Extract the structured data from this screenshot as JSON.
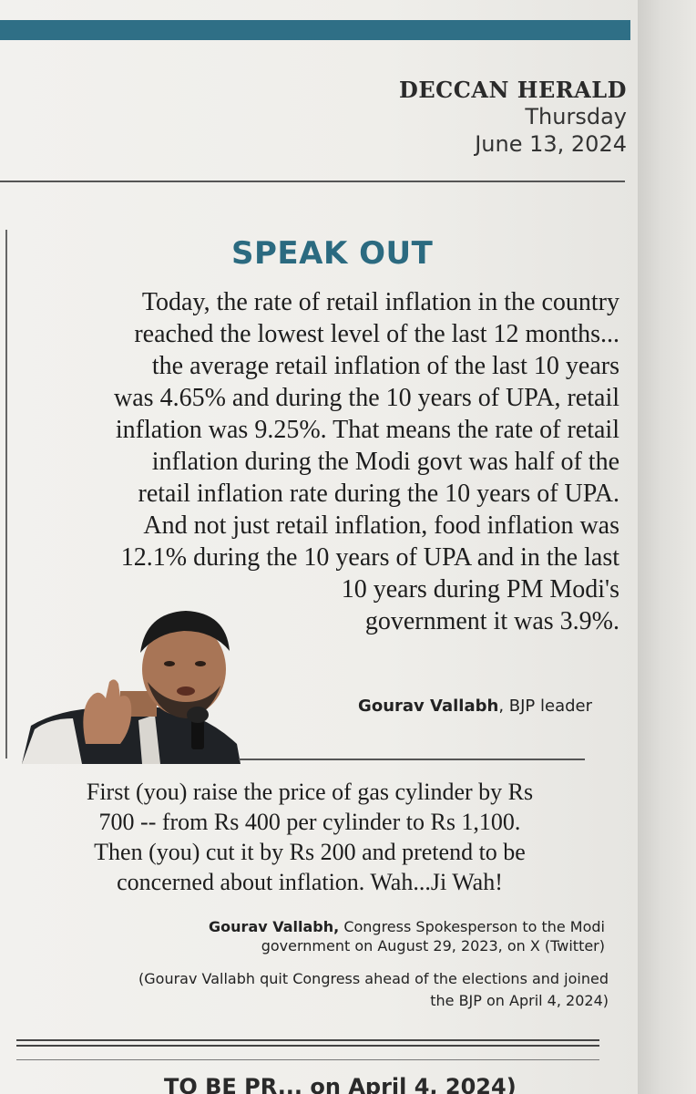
{
  "masthead": {
    "name": "DECCAN HERALD",
    "day": "Thursday",
    "date": "June 13, 2024"
  },
  "section": {
    "title": "SPEAK OUT"
  },
  "quote1": {
    "lines": [
      "Today, the rate of retail inflation in the country",
      "reached the lowest level of the last 12 months...",
      "the average retail inflation of the last 10 years",
      "was 4.65% and during the 10 years of UPA, retail",
      "inflation was 9.25%. That means the rate of retail",
      "inflation during the Modi govt was half of the",
      "retail inflation rate during the 10 years of UPA.",
      "And not just retail inflation, food inflation was",
      "12.1% during the 10 years of UPA and in the last",
      "10 years during PM Modi's",
      "government it was 3.9%."
    ],
    "speaker": "Gourav Vallabh",
    "role": ", BJP leader"
  },
  "quote2": {
    "lines": [
      "First (you) raise the price of gas cylinder by Rs",
      "700 -- from Rs 400 per cylinder to Rs 1,100.",
      "Then (you) cut it by Rs 200 and pretend to be",
      "concerned about inflation. Wah...Ji Wah!"
    ],
    "speaker": "Gourav Vallabh,",
    "role_line1": " Congress Spokesperson to the Modi",
    "role_line2": "government on August 29, 2023, on X (Twitter)",
    "note_line1": "(Gourav Vallabh quit Congress ahead of the elections and joined",
    "note_line2": "the BJP on April 4, 2024)"
  },
  "next_article": {
    "partial_text": "TO BE PR... on April 4, 2024)"
  },
  "colors": {
    "accent": "#2b6a80",
    "band": "#2f6f86"
  }
}
